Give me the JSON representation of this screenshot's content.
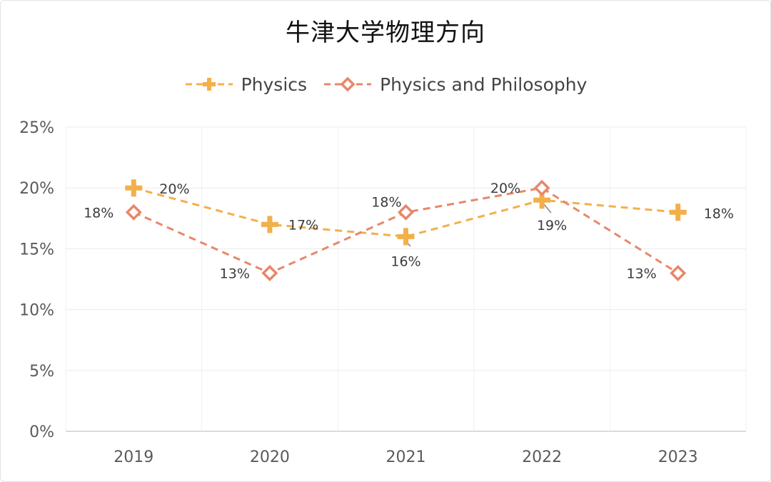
{
  "chart_data": {
    "type": "line",
    "title": "牛津大学物理方向",
    "categories": [
      "2019",
      "2020",
      "2021",
      "2022",
      "2023"
    ],
    "yticks": [
      "0%",
      "5%",
      "10%",
      "15%",
      "20%",
      "25%"
    ],
    "ylim": [
      0,
      25
    ],
    "grid": true,
    "legend_position": "top-center",
    "series": [
      {
        "name": "Physics",
        "values": [
          20,
          17,
          16,
          19,
          18
        ],
        "labels": [
          "20%",
          "17%",
          "16%",
          "19%",
          "18%"
        ],
        "color": "#F2B04A",
        "marker": "plus",
        "line_style": "dashed"
      },
      {
        "name": "Physics and Philosophy",
        "values": [
          18,
          13,
          18,
          20,
          13
        ],
        "labels": [
          "18%",
          "13%",
          "18%",
          "20%",
          "13%"
        ],
        "color": "#E8876A",
        "marker": "diamond",
        "line_style": "dashed"
      }
    ]
  }
}
